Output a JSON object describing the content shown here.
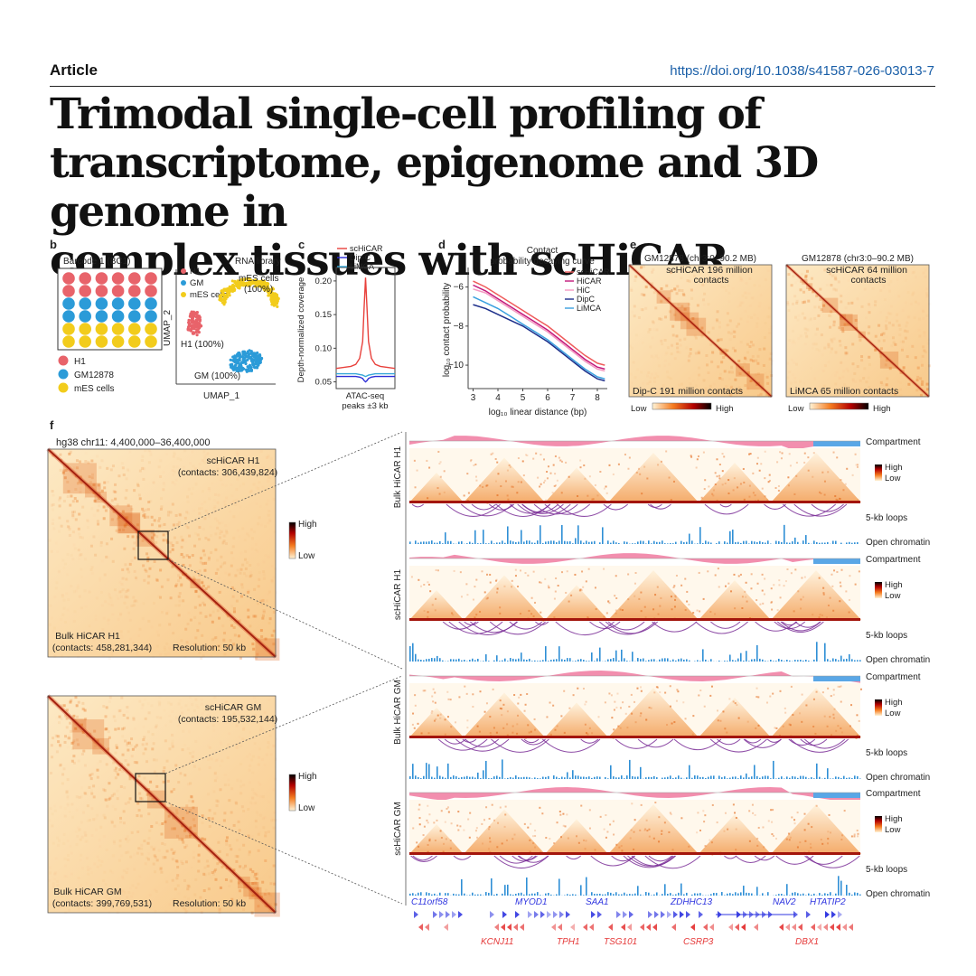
{
  "header": {
    "section": "Article",
    "doi": "https://doi.org/10.1038/s41587-026-03013-7"
  },
  "title": "Trimodal single-cell profiling of transcriptome, epigenome and 3D genome in complex tissues with scHiCAR",
  "title_lines": [
    "Trimodal single-cell profiling of",
    "transcriptome, epigenome and 3D genome in",
    "complex tissues with scHiCAR"
  ],
  "panels": {
    "b": {
      "letter": "b",
      "plate_title": "Barcode 1 (BC1)",
      "plate_rows": [
        "H1",
        "H1",
        "GM12878",
        "GM12878",
        "mES cells",
        "mES cells"
      ],
      "legend": [
        {
          "label": "H1",
          "color": "#e8636a"
        },
        {
          "label": "GM12878",
          "color": "#2b9bd8"
        },
        {
          "label": "mES cells",
          "color": "#f2cc1c"
        }
      ],
      "umap_title": "RNA library",
      "umap_legend": [
        "H1",
        "GM",
        "mES cells"
      ],
      "umap_xlabel": "UMAP_1",
      "umap_ylabel": "UMAP_2",
      "cluster_labels": {
        "mes_line1": "mES cells",
        "mes_line2": "(100%)",
        "h1": "H1 (100%)",
        "gm": "GM (100%)"
      }
    },
    "c": {
      "letter": "c"
    },
    "d": {
      "letter": "d"
    },
    "e": {
      "letter": "e",
      "maps": [
        {
          "title": "GM12878 (chr3:0–90.2 MB)",
          "upper_line1": "scHiCAR 196 million",
          "upper_line2": "contacts",
          "lower": "Dip-C 191 million contacts"
        },
        {
          "title": "GM12878 (chr3:0–90.2 MB)",
          "upper_line1": "scHiCAR 64 million",
          "upper_line2": "contacts",
          "lower": "LiMCA 65 million contacts"
        }
      ],
      "scale_low": "Low",
      "scale_high": "High"
    },
    "f": {
      "letter": "f",
      "region": "hg38 chr11: 4,400,000–36,400,000",
      "maps": [
        {
          "upper_line1": "scHiCAR H1",
          "upper_line2": "(contacts: 306,439,824)",
          "lower_line1": "Bulk HiCAR H1",
          "lower_line2": "(contacts: 458,281,344)",
          "resolution": "Resolution: 50 kb"
        },
        {
          "upper_line1": "scHiCAR GM",
          "upper_line2": "(contacts: 195,532,144)",
          "lower_line1": "Bulk HiCAR GM",
          "lower_line2": "(contacts: 399,769,531)",
          "resolution": "Resolution: 50 kb"
        }
      ],
      "scale_high": "High",
      "scale_low": "Low",
      "tracks": [
        "Bulk HiCAR H1",
        "scHiCAR H1",
        "Bulk HiCAR GM",
        "scHiCAR GM"
      ],
      "track_labels": {
        "compartment": "Compartment",
        "loops": "5-kb loops",
        "open": "Open chromatin"
      },
      "genes_top": [
        "C11orf58",
        "MYOD1",
        "SAA1",
        "ZDHHC13",
        "NAV2",
        "HTATIP2"
      ],
      "genes_bottom": [
        "KCNJ11",
        "TPH1",
        "TSG101",
        "CSRP3",
        "DBX1"
      ],
      "colors": {
        "compartment_pos": "#f07aa0",
        "compartment_neg": "#5aa7e6",
        "loops": "#7b2f98",
        "open": "#2f8fd6",
        "gene_fwd": "#2f35e0",
        "gene_rev": "#e53a3a"
      }
    }
  },
  "chart_data": [
    {
      "type": "line",
      "panel": "c",
      "xlabel": "ATAC-seq peaks ±3 kb",
      "ylabel": "Depth-normalized coverage",
      "yticks": [
        0.05,
        0.1,
        0.15,
        0.2
      ],
      "ylim": [
        0.04,
        0.22
      ],
      "x": [
        -3,
        -2.5,
        -2,
        -1.5,
        -1,
        -0.6,
        -0.3,
        -0.15,
        0,
        0.15,
        0.3,
        0.6,
        1,
        1.5,
        2,
        2.5,
        3
      ],
      "series": [
        {
          "name": "scHiCAR",
          "color": "#e8413c",
          "values": [
            0.07,
            0.071,
            0.072,
            0.073,
            0.076,
            0.085,
            0.11,
            0.16,
            0.205,
            0.16,
            0.11,
            0.085,
            0.076,
            0.073,
            0.072,
            0.071,
            0.07
          ]
        },
        {
          "name": "Dip-C",
          "color": "#2b2bd6",
          "values": [
            0.058,
            0.058,
            0.058,
            0.058,
            0.058,
            0.057,
            0.055,
            0.052,
            0.05,
            0.052,
            0.055,
            0.057,
            0.058,
            0.058,
            0.058,
            0.058,
            0.058
          ]
        },
        {
          "name": "LiMCA",
          "color": "#35a7d8",
          "values": [
            0.062,
            0.062,
            0.062,
            0.062,
            0.062,
            0.061,
            0.06,
            0.059,
            0.058,
            0.059,
            0.06,
            0.061,
            0.062,
            0.062,
            0.062,
            0.062,
            0.062
          ]
        }
      ],
      "legend_position": "top-right"
    },
    {
      "type": "line",
      "panel": "d",
      "title_line1": "Contact",
      "title_line2": "probability decaying curve",
      "xlabel": "log₁₀ linear distance (bp)",
      "ylabel": "log₁₀ contact probability",
      "xticks": [
        3,
        4,
        5,
        6,
        7,
        8
      ],
      "yticks": [
        -6,
        -8,
        -10
      ],
      "xlim": [
        2.8,
        8.4
      ],
      "ylim": [
        -11.2,
        -5.0
      ],
      "x": [
        3,
        3.5,
        4,
        4.5,
        5,
        5.5,
        6,
        6.5,
        7,
        7.5,
        8,
        8.3
      ],
      "series": [
        {
          "name": "scHiCAR",
          "color": "#ef5b5b",
          "values": [
            -5.7,
            -6.0,
            -6.4,
            -6.8,
            -7.2,
            -7.6,
            -8.0,
            -8.5,
            -9.0,
            -9.5,
            -9.9,
            -10.0
          ]
        },
        {
          "name": "HiCAR",
          "color": "#c2187a",
          "values": [
            -5.9,
            -6.2,
            -6.6,
            -7.0,
            -7.4,
            -7.8,
            -8.2,
            -8.7,
            -9.2,
            -9.7,
            -10.1,
            -10.2
          ]
        },
        {
          "name": "HiC",
          "color": "#f49ac1",
          "values": [
            -6.1,
            -6.3,
            -6.7,
            -7.1,
            -7.5,
            -7.9,
            -8.3,
            -8.8,
            -9.3,
            -9.8,
            -10.2,
            -10.3
          ]
        },
        {
          "name": "DipC",
          "color": "#1c2e8a",
          "values": [
            -6.9,
            -7.1,
            -7.4,
            -7.7,
            -8.0,
            -8.4,
            -8.8,
            -9.3,
            -9.8,
            -10.3,
            -10.7,
            -10.8
          ]
        },
        {
          "name": "LiMCA",
          "color": "#3aa0df",
          "values": [
            -6.5,
            -6.8,
            -7.1,
            -7.5,
            -7.9,
            -8.3,
            -8.7,
            -9.2,
            -9.7,
            -10.2,
            -10.6,
            -10.7
          ]
        }
      ],
      "legend_position": "top-right"
    }
  ]
}
